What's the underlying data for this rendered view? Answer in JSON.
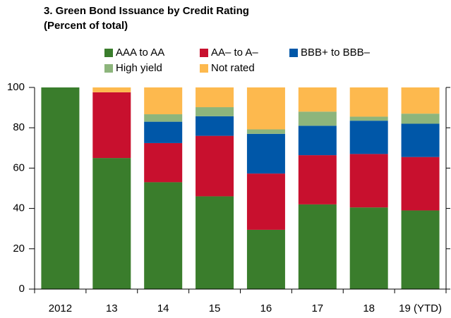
{
  "chart_data": {
    "type": "stacked_bar",
    "title": "3. Green Bond Issuance by Credit Rating",
    "subtitle": "(Percent of total)",
    "categories": [
      "2012",
      "13",
      "14",
      "15",
      "16",
      "17",
      "18",
      "19 (YTD)"
    ],
    "series": [
      {
        "name": "AAA to AA",
        "color": "#3a7d2c",
        "values": [
          100,
          65,
          53,
          46,
          29.4,
          42,
          40.5,
          39
        ]
      },
      {
        "name": "AA– to A–",
        "color": "#c8102e",
        "values": [
          0,
          32.6,
          19.4,
          30,
          27.9,
          24.4,
          26.5,
          26.5
        ]
      },
      {
        "name": "BBB+ to BBB–",
        "color": "#0057a8",
        "values": [
          0,
          0,
          10.6,
          9.7,
          19.7,
          14.6,
          16.5,
          16.5
        ]
      },
      {
        "name": "High yield",
        "color": "#8db57c",
        "values": [
          0,
          0,
          3.7,
          4.5,
          2.2,
          7,
          2,
          5
        ]
      },
      {
        "name": "Not rated",
        "color": "#fdb94e",
        "values": [
          0,
          2.4,
          13.3,
          9.8,
          20.8,
          12,
          14.5,
          13
        ]
      }
    ],
    "ylim": [
      0,
      100
    ],
    "yticks": [
      0,
      20,
      40,
      60,
      80,
      100
    ]
  }
}
